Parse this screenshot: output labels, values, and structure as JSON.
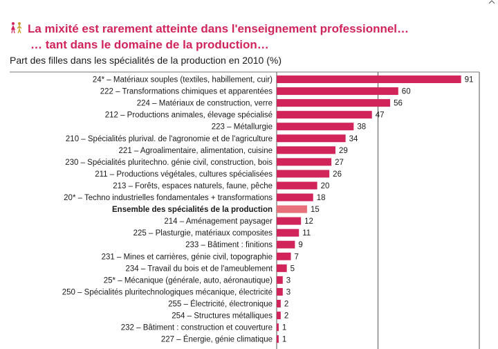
{
  "header": {
    "title_line1": "La mixité est rarement atteinte dans l'enseignement professionnel…",
    "title_line2": "… tant dans le domaine de la production…",
    "subtitle": "Part des filles dans les spécialités de la production en 2010 (%)",
    "icon": "girl-boy-figures-icon"
  },
  "colors": {
    "title": "#d0245a",
    "bar": "#d0245a",
    "bar_highlight": "#e8707a",
    "grid": "#555555"
  },
  "chart_data": {
    "type": "bar",
    "orientation": "horizontal",
    "title": "Part des filles dans les spécialités de la production en 2010 (%)",
    "xlim": [
      0,
      100
    ],
    "grid": true,
    "categories": [
      "24* – Matériaux souples (textiles, habillement, cuir)",
      "222 – Transformations chimiques et apparentées",
      "224 – Matériaux de construction, verre",
      "212 – Productions animales, élevage spécialisé",
      "223 – Métallurgie",
      "210 – Spécialités plurival. de l'agronomie et de l'agriculture",
      "221 – Agroalimentaire, alimentation, cuisine",
      "230 – Spécialités pluritechno. génie civil, construction, bois",
      "211 – Productions végétales, cultures spécialisées",
      "213 – Forêts, espaces naturels, faune, pêche",
      "20* – Techno industrielles fondamentales + transformations",
      "Ensemble des spécialités de la production",
      "214 – Aménagement paysager",
      "225 – Plasturgie, matériaux composites",
      "233 – Bâtiment : finitions",
      "231 – Mines et carrières, génie civil, topographie",
      "234 – Travail du bois et de l'ameublement",
      "25* – Mécanique (générale, auto, aéronautique)",
      "250 – Spécialités pluritechnologiques mécanique, électricité",
      "255 – Électricité, électronique",
      "254 – Structures métalliques",
      "232 – Bâtiment : construction et couverture",
      "227 – Énergie, génie climatique"
    ],
    "values": [
      91,
      60,
      56,
      47,
      38,
      34,
      29,
      27,
      26,
      20,
      18,
      15,
      12,
      11,
      9,
      7,
      5,
      3,
      3,
      2,
      2,
      1,
      1
    ],
    "highlight": "Ensemble des spécialités de la production"
  }
}
